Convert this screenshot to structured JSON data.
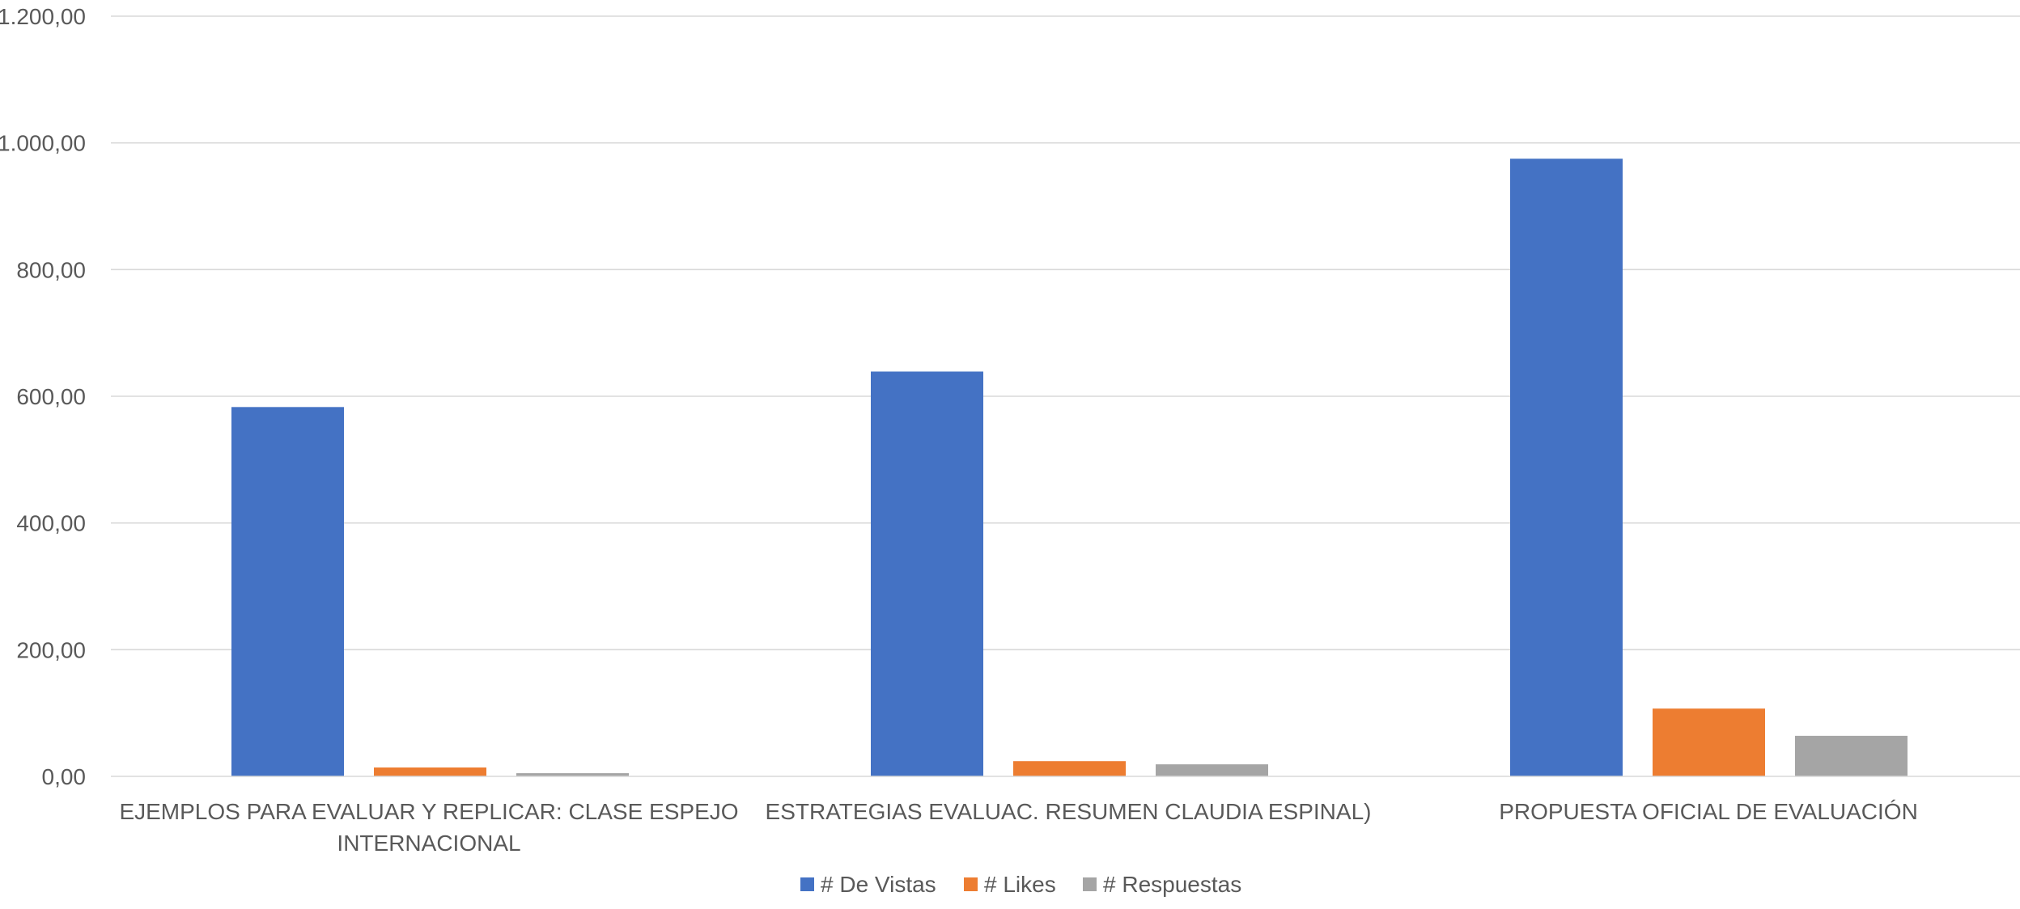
{
  "chart_data": {
    "type": "bar",
    "title": "",
    "xlabel": "",
    "ylabel": "",
    "categories": [
      [
        "EJEMPLOS PARA EVALUAR Y REPLICAR: CLASE ESPEJO",
        "INTERNACIONAL"
      ],
      [
        "ESTRATEGIAS EVALUAC. RESUMEN CLAUDIA ESPINAL)"
      ],
      [
        "PROPUESTA OFICIAL DE EVALUACIÓN"
      ]
    ],
    "series": [
      {
        "name": "# De Vistas",
        "color": "#4472c4",
        "values": [
          583,
          639,
          975
        ]
      },
      {
        "name": "# Likes",
        "color": "#ed7d31",
        "values": [
          14,
          24,
          107
        ]
      },
      {
        "name": "# Respuestas",
        "color": "#a5a5a5",
        "values": [
          5,
          19,
          64
        ]
      }
    ],
    "ylim": [
      0,
      1200
    ],
    "yticks": [
      0,
      200,
      400,
      600,
      800,
      1000,
      1200
    ],
    "ytick_labels": [
      "0,00",
      "200,00",
      "400,00",
      "600,00",
      "800,00",
      "1.000,00",
      "1.200,00"
    ],
    "grid": true,
    "legend": "bottom-center"
  }
}
